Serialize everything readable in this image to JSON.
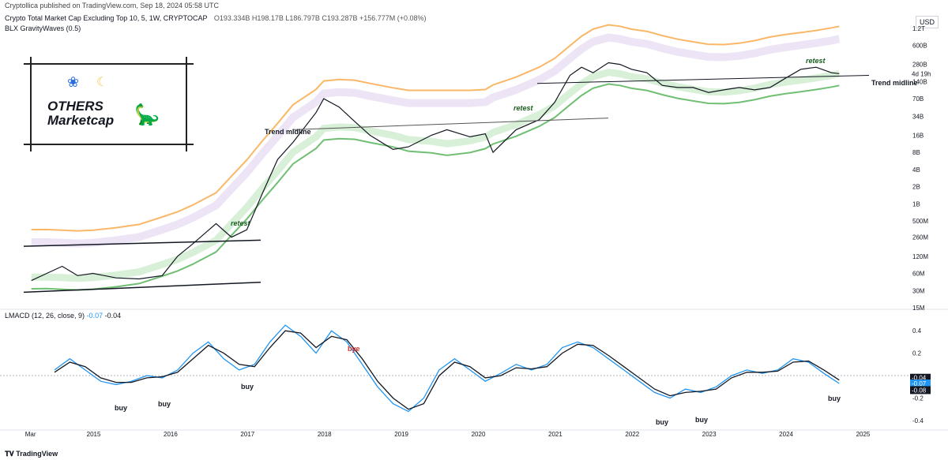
{
  "header": {
    "publisher": "Cryptollica published on TradingView.com, Sep 18, 2024 05:58 UTC",
    "symbol": "Crypto Total Market Cap Excluding Top 10, 5, 1W, CRYPTOCAP",
    "ohlc": "O193.334B  H198.17B  L186.797B  C193.287B  +156.777M (+0.08%)",
    "indicator": "BLX GravityWaves (0.5)",
    "currency": "USD"
  },
  "logo": {
    "line1": "OTHERS",
    "line2": "Marketcap",
    "butterfly": "butterfly-icon",
    "moon": "moon-icon",
    "dino": "dinosaur-icon"
  },
  "macd_legend": {
    "name": "LMACD (12, 26, close, 9)",
    "macd": "-0.07",
    "signal": "-0.04"
  },
  "footer": "TradingView",
  "chart_data": [
    {
      "type": "line",
      "name": "price",
      "scale": "log",
      "y_unit": "USD",
      "ylim": [
        15000000,
        1200000000000
      ],
      "y_ticks": [
        "1.2T",
        "600B",
        "280B",
        "140B",
        "70B",
        "34B",
        "16B",
        "8B",
        "4B",
        "2B",
        "1B",
        "500M",
        "260M",
        "120M",
        "60M",
        "30M",
        "15M"
      ],
      "x_ticks": [
        "Mar",
        "2015",
        "2016",
        "2017",
        "2018",
        "2019",
        "2020",
        "2021",
        "2022",
        "2023",
        "2024",
        "2025"
      ],
      "last_price_label": "4d 19h",
      "x": [
        2014.2,
        2014.4,
        2014.6,
        2014.8,
        2015.0,
        2015.3,
        2015.6,
        2015.9,
        2016.1,
        2016.3,
        2016.6,
        2016.8,
        2017.0,
        2017.2,
        2017.4,
        2017.6,
        2017.9,
        2018.0,
        2018.2,
        2018.4,
        2018.6,
        2018.9,
        2019.1,
        2019.4,
        2019.6,
        2019.9,
        2020.1,
        2020.2,
        2020.5,
        2020.8,
        2021.0,
        2021.2,
        2021.35,
        2021.5,
        2021.7,
        2021.85,
        2022.0,
        2022.2,
        2022.4,
        2022.6,
        2022.8,
        2023.0,
        2023.2,
        2023.4,
        2023.6,
        2023.8,
        2024.0,
        2024.2,
        2024.4,
        2024.6,
        2024.7
      ],
      "values": [
        45000000,
        60000000,
        80000000,
        55000000,
        60000000,
        50000000,
        48000000,
        55000000,
        120000000,
        200000000,
        450000000,
        260000000,
        350000000,
        1500000000,
        6000000000,
        12000000000,
        40000000000,
        70000000000,
        50000000000,
        28000000000,
        16000000000,
        9000000000,
        10000000000,
        16000000000,
        20000000000,
        15000000000,
        17000000000,
        8000000000,
        20000000000,
        30000000000,
        60000000000,
        180000000000,
        250000000000,
        200000000000,
        300000000000,
        280000000000,
        230000000000,
        200000000000,
        120000000000,
        110000000000,
        110000000000,
        90000000000,
        100000000000,
        110000000000,
        100000000000,
        110000000000,
        160000000000,
        230000000000,
        250000000000,
        200000000000,
        193287000000
      ],
      "annotations": [
        "Trend midline",
        "retest",
        "retest",
        "retest",
        "Trend midline"
      ],
      "series": [
        {
          "name": "price",
          "color": "#131722"
        },
        {
          "name": "upper band",
          "color": "#f7a541"
        },
        {
          "name": "lower band",
          "color": "#4caf50"
        }
      ]
    },
    {
      "type": "line",
      "name": "LMACD",
      "ylim": [
        -0.45,
        0.5
      ],
      "y_ticks": [
        "0.4",
        "0.2",
        "-0.2",
        "-0.4"
      ],
      "value_labels": [
        "-0.04",
        "-0.07",
        "-0.08"
      ],
      "x": [
        2014.5,
        2014.7,
        2014.9,
        2015.1,
        2015.3,
        2015.5,
        2015.7,
        2015.9,
        2016.1,
        2016.3,
        2016.5,
        2016.7,
        2016.9,
        2017.1,
        2017.3,
        2017.5,
        2017.7,
        2017.9,
        2018.1,
        2018.3,
        2018.5,
        2018.7,
        2018.9,
        2019.1,
        2019.3,
        2019.5,
        2019.7,
        2019.9,
        2020.1,
        2020.3,
        2020.5,
        2020.7,
        2020.9,
        2021.1,
        2021.3,
        2021.5,
        2021.7,
        2021.9,
        2022.1,
        2022.3,
        2022.5,
        2022.7,
        2022.9,
        2023.1,
        2023.3,
        2023.5,
        2023.7,
        2023.9,
        2024.1,
        2024.3,
        2024.5,
        2024.7
      ],
      "series": [
        {
          "name": "macd",
          "color": "#2196f3",
          "values": [
            0.05,
            0.15,
            0.05,
            -0.05,
            -0.08,
            -0.05,
            0.0,
            -0.02,
            0.05,
            0.2,
            0.3,
            0.15,
            0.05,
            0.1,
            0.3,
            0.45,
            0.35,
            0.2,
            0.4,
            0.3,
            0.1,
            -0.1,
            -0.25,
            -0.32,
            -0.2,
            0.05,
            0.15,
            0.05,
            -0.05,
            0.02,
            0.1,
            0.05,
            0.1,
            0.25,
            0.3,
            0.25,
            0.15,
            0.05,
            -0.05,
            -0.15,
            -0.2,
            -0.12,
            -0.15,
            -0.1,
            0.0,
            0.05,
            0.02,
            0.05,
            0.15,
            0.12,
            0.02,
            -0.07
          ]
        },
        {
          "name": "signal",
          "color": "#131722",
          "values": [
            0.03,
            0.12,
            0.08,
            -0.02,
            -0.06,
            -0.06,
            -0.02,
            -0.01,
            0.03,
            0.15,
            0.27,
            0.2,
            0.1,
            0.08,
            0.25,
            0.4,
            0.38,
            0.25,
            0.35,
            0.32,
            0.15,
            -0.05,
            -0.2,
            -0.3,
            -0.25,
            0.0,
            0.12,
            0.08,
            -0.02,
            0.0,
            0.07,
            0.06,
            0.08,
            0.2,
            0.28,
            0.27,
            0.18,
            0.08,
            -0.02,
            -0.12,
            -0.18,
            -0.15,
            -0.14,
            -0.12,
            -0.02,
            0.03,
            0.03,
            0.04,
            0.12,
            0.13,
            0.05,
            -0.04
          ]
        }
      ],
      "annotations": [
        "buy",
        "buy",
        "buy",
        "bye",
        "buy",
        "buy",
        "buy"
      ]
    }
  ]
}
